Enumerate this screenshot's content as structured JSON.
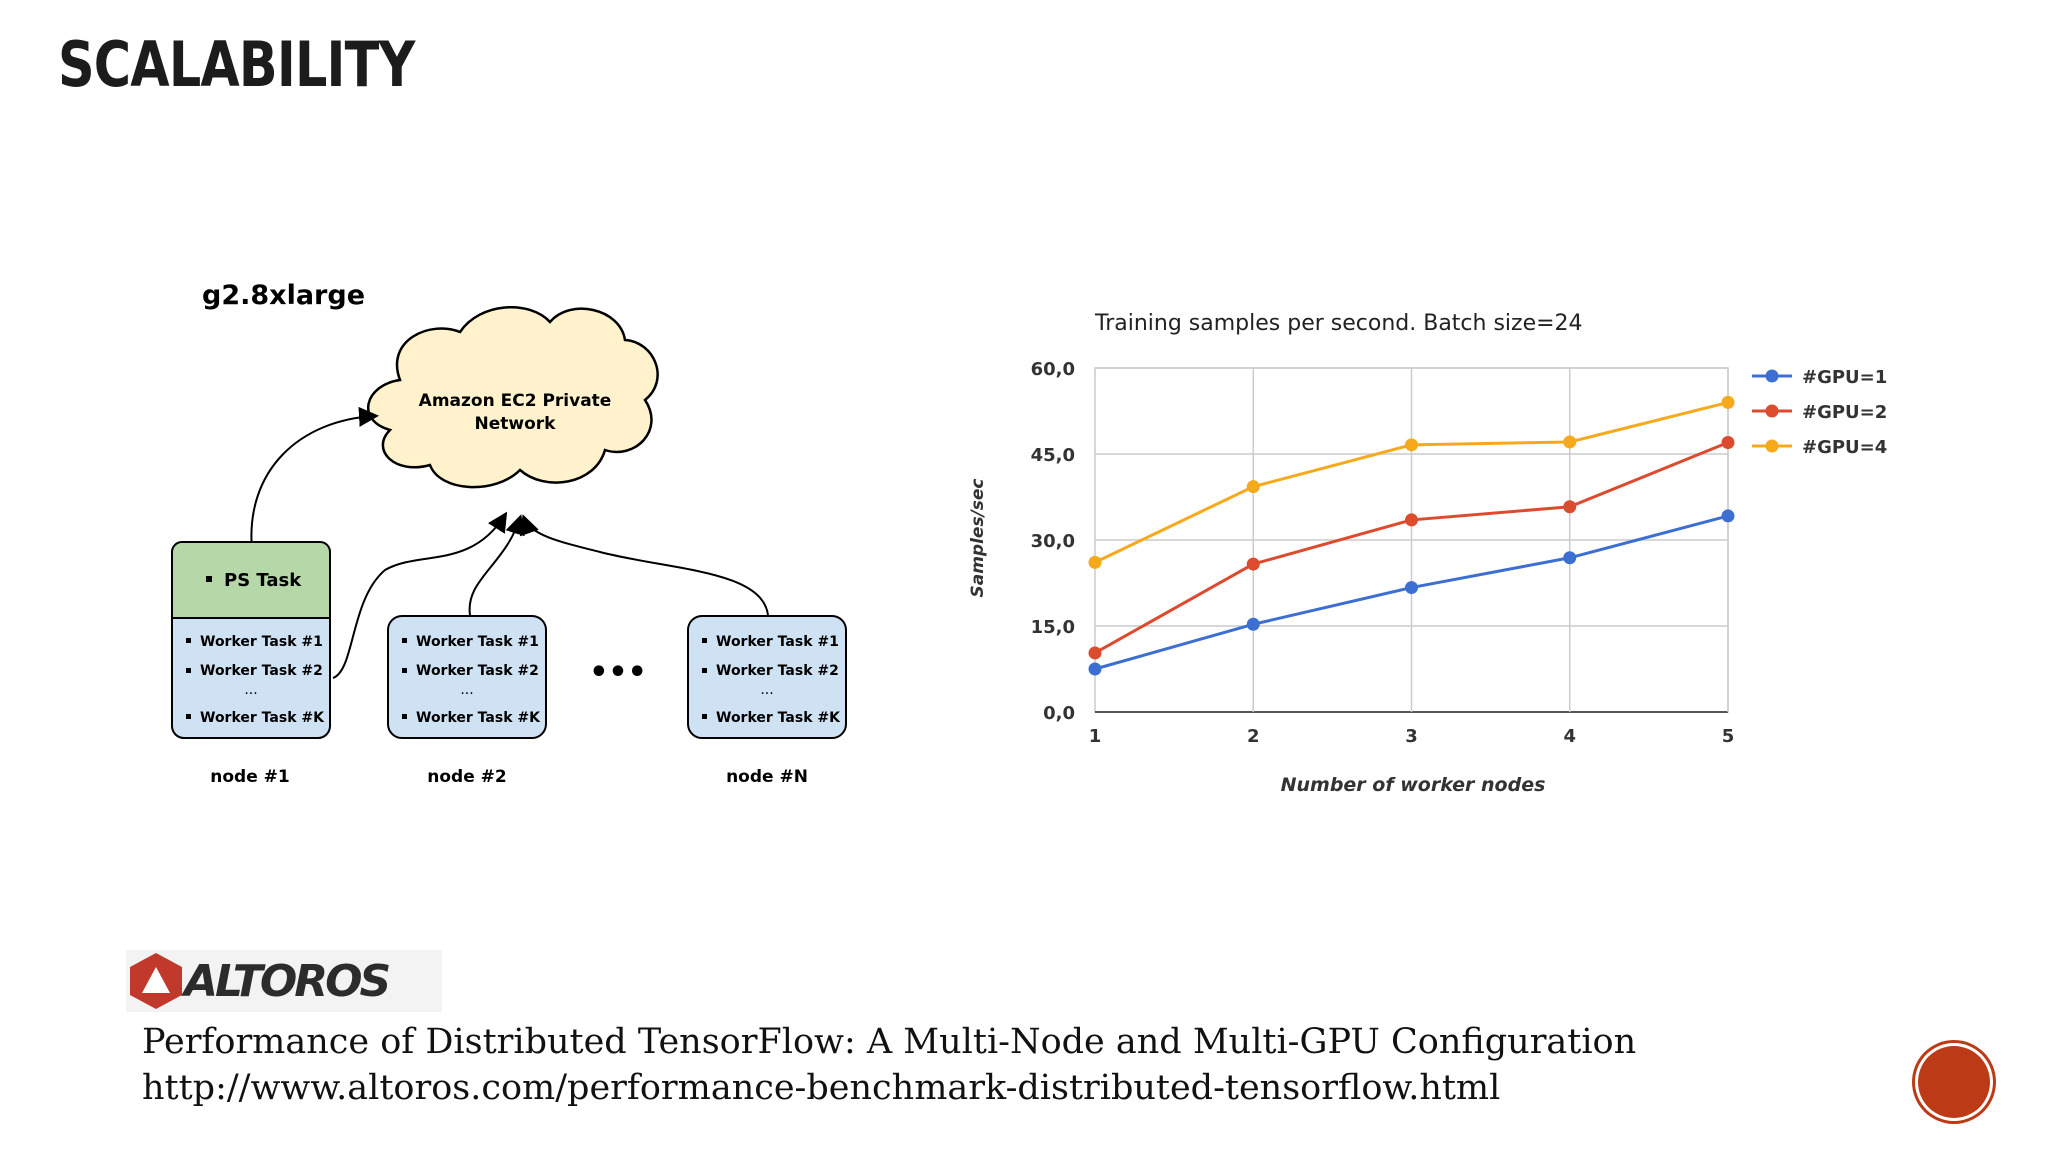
{
  "slide": {
    "title": "SCALABILITY",
    "caption_line1": "Performance of Distributed TensorFlow: A Multi-Node and Multi-GPU Configuration",
    "caption_line2": "http://www.altoros.com/performance-benchmark-distributed-tensorflow.html",
    "logo_text": "ALTOROS"
  },
  "diagram": {
    "instance_label": "g2.8xlarge",
    "cloud_line1": "Amazon EC2 Private",
    "cloud_line2": "Network",
    "ps_task": "PS Task",
    "worker1": "Worker Task #1",
    "worker2": "Worker Task #2",
    "dots": "...",
    "workerK": "Worker Task #K",
    "node1": "node #1",
    "node2": "node #2",
    "nodeN": "node #N",
    "ellipsis": "•••"
  },
  "chart_data": {
    "type": "line",
    "title": "Training samples per second. Batch size=24",
    "xlabel": "Number of worker nodes",
    "ylabel": "Samples/sec",
    "x": [
      1,
      2,
      3,
      4,
      5
    ],
    "x_tick_labels": [
      "1",
      "2",
      "3",
      "4",
      "5"
    ],
    "ylim": [
      0,
      60
    ],
    "y_tick_labels": [
      "0,0",
      "15,0",
      "30,0",
      "45,0",
      "60,0"
    ],
    "y_ticks": [
      0,
      15,
      30,
      45,
      60
    ],
    "grid": true,
    "legend_position": "right",
    "series": [
      {
        "name": "#GPU=1",
        "color": "#3c6fd1",
        "values": [
          7.5,
          15.3,
          21.7,
          26.9,
          34.2
        ]
      },
      {
        "name": "#GPU=2",
        "color": "#dd4b2f",
        "values": [
          10.3,
          25.8,
          33.5,
          35.8,
          47.0
        ]
      },
      {
        "name": "#GPU=4",
        "color": "#f7a91c",
        "values": [
          26.1,
          39.3,
          46.6,
          47.1,
          54.0
        ]
      }
    ]
  },
  "colors": {
    "ps_green": "#b6d7a8",
    "worker_blue": "#cfe2f3",
    "cloud_fill": "#fff2cc",
    "corner_red": "#bd3a16"
  }
}
